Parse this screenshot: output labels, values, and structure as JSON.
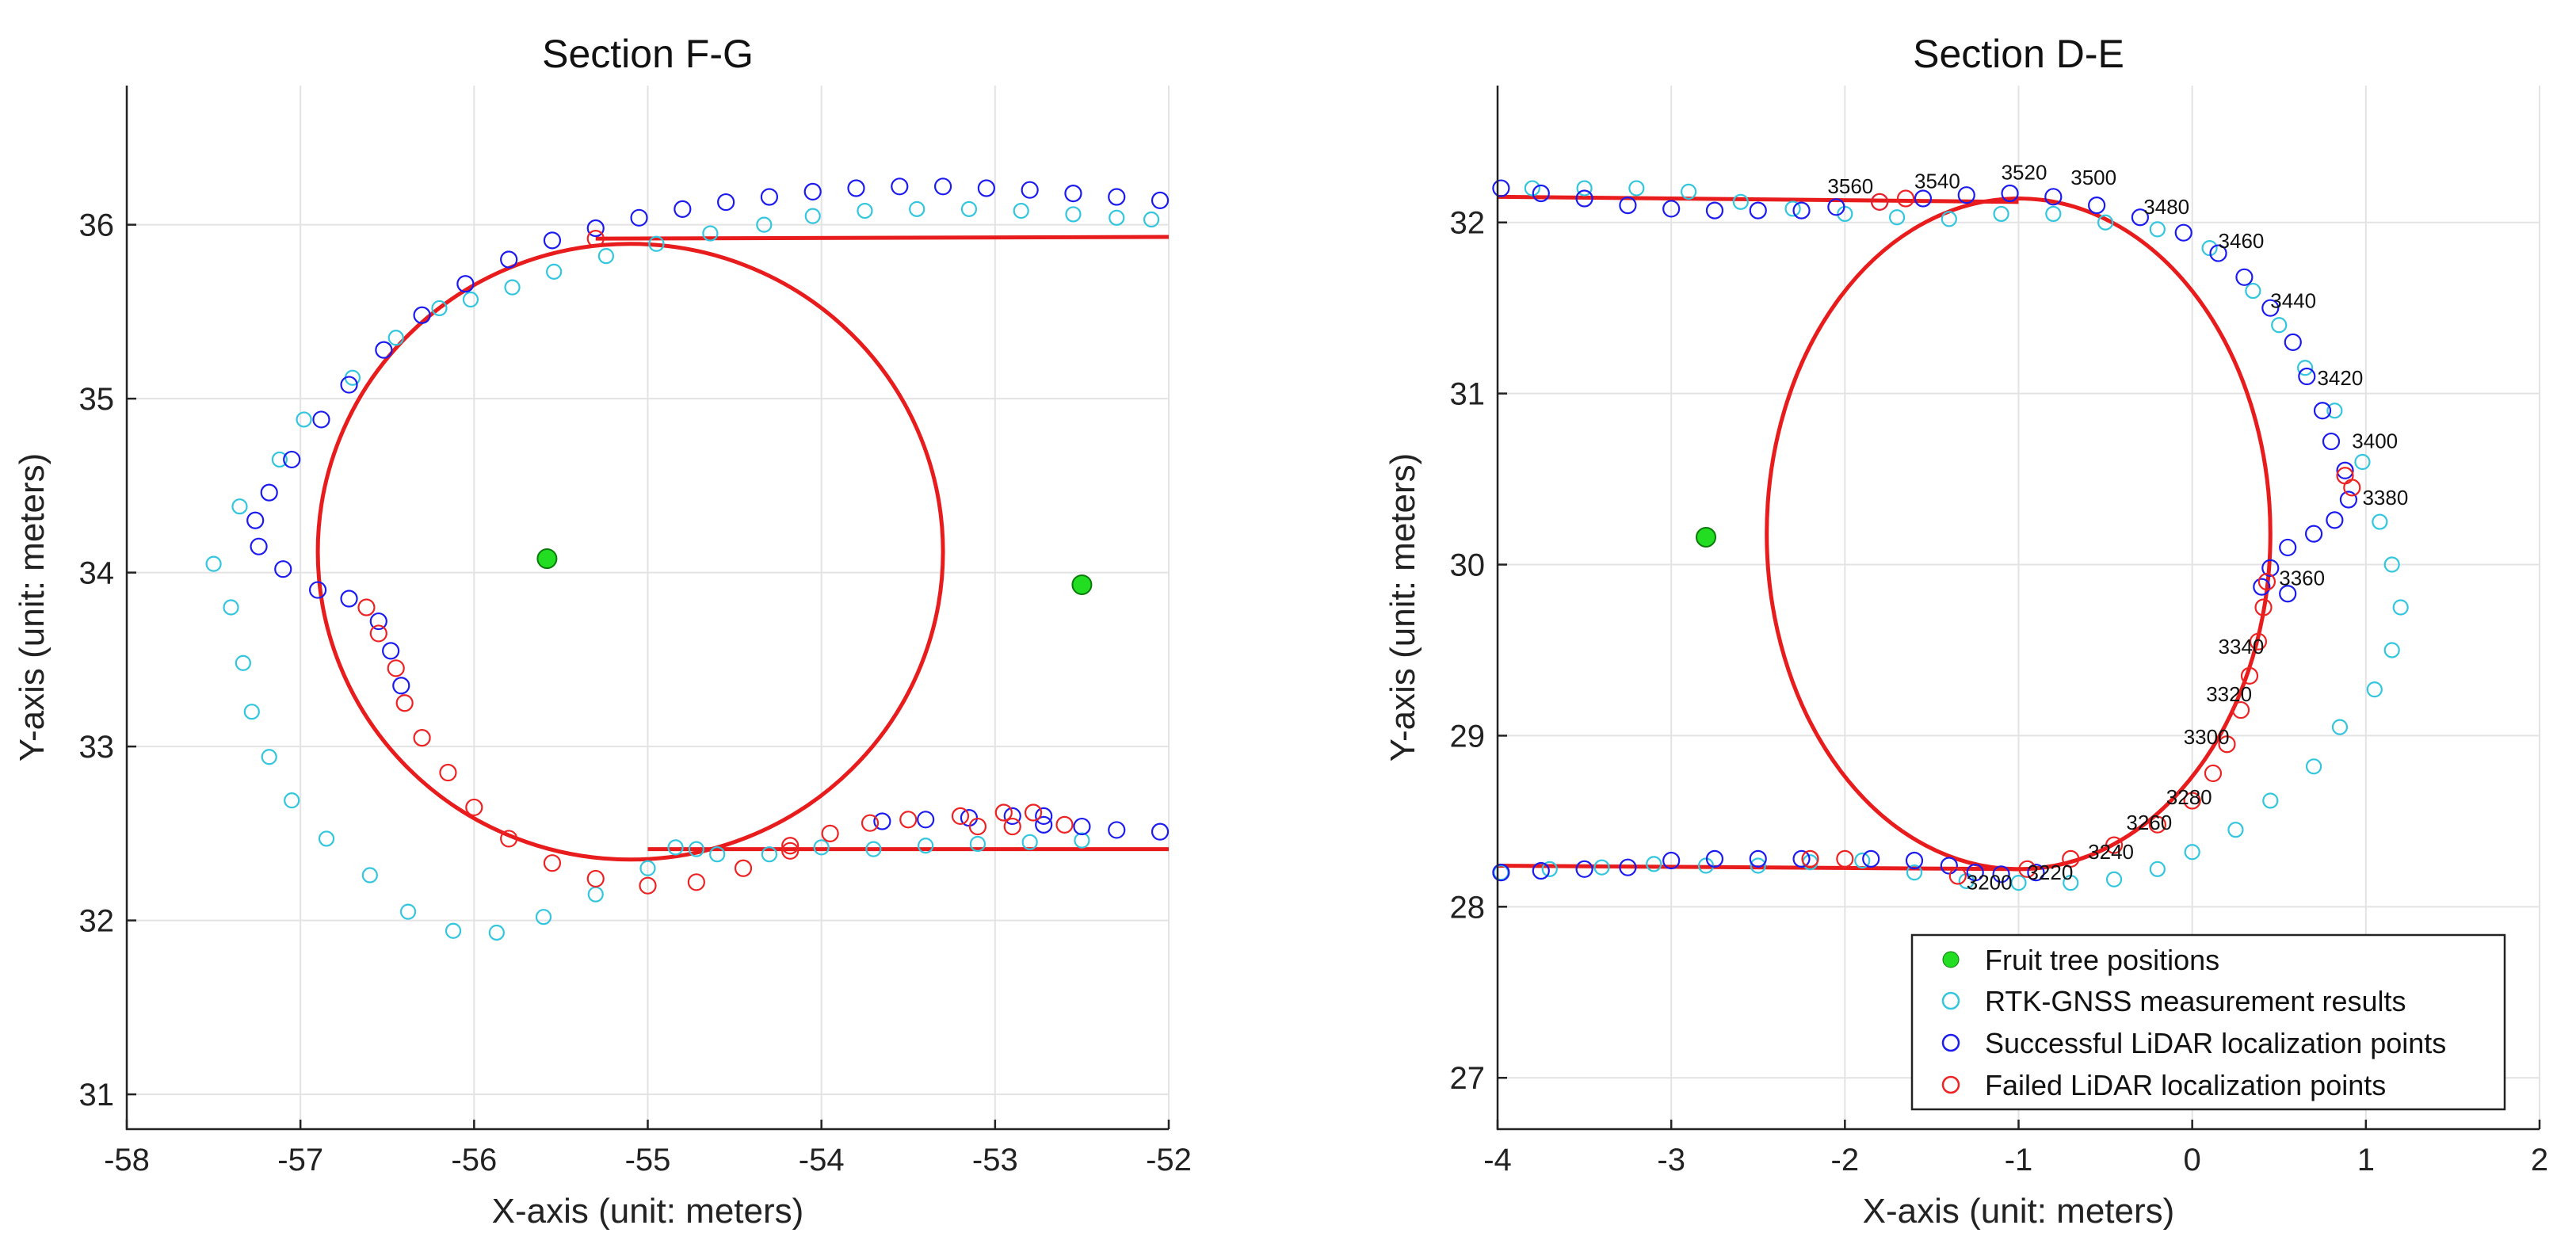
{
  "colors": {
    "tree_fill": "#22dd22",
    "tree_edge": "#0a7a0a",
    "rtk": "#33c6de",
    "success": "#1b1bf0",
    "failed": "#ee2222",
    "path": "#e81c1c"
  },
  "legend": {
    "entries": [
      "Fruit tree positions",
      "RTK-GNSS measurement results",
      "Successful LiDAR localization points",
      "Failed LiDAR localization points"
    ]
  },
  "chart_data": [
    {
      "type": "scatter",
      "title": "Section F-G",
      "xlabel": "X-axis (unit: meters)",
      "ylabel": "Y-axis (unit: meters)",
      "xlim": [
        -58,
        -52
      ],
      "ylim": [
        30.8,
        36.8
      ],
      "xticks": [
        -58,
        -57,
        -56,
        -55,
        -54,
        -53,
        -52
      ],
      "yticks": [
        31,
        32,
        33,
        34,
        35,
        36
      ],
      "grid": true,
      "trees": [
        [
          -55.58,
          34.08
        ],
        [
          -52.5,
          33.93
        ]
      ],
      "rtk": [
        [
          -57.5,
          34.05
        ],
        [
          -57.4,
          33.8
        ],
        [
          -57.33,
          33.48
        ],
        [
          -57.28,
          33.2
        ],
        [
          -57.18,
          32.94
        ],
        [
          -57.05,
          32.69
        ],
        [
          -56.85,
          32.47
        ],
        [
          -56.6,
          32.26
        ],
        [
          -56.38,
          32.05
        ],
        [
          -56.12,
          31.94
        ],
        [
          -55.87,
          31.93
        ],
        [
          -55.6,
          32.02
        ],
        [
          -55.3,
          32.15
        ],
        [
          -55.0,
          32.3
        ],
        [
          -54.84,
          32.42
        ],
        [
          -54.72,
          32.41
        ],
        [
          -54.6,
          32.38
        ],
        [
          -54.3,
          32.38
        ],
        [
          -54.0,
          32.42
        ],
        [
          -53.7,
          32.41
        ],
        [
          -53.4,
          32.43
        ],
        [
          -53.1,
          32.44
        ],
        [
          -52.8,
          32.45
        ],
        [
          -52.5,
          32.46
        ],
        [
          -57.35,
          34.38
        ],
        [
          -57.12,
          34.65
        ],
        [
          -56.98,
          34.88
        ],
        [
          -56.7,
          35.12
        ],
        [
          -56.45,
          35.35
        ],
        [
          -56.2,
          35.52
        ],
        [
          -56.02,
          35.57
        ],
        [
          -55.78,
          35.64
        ],
        [
          -55.54,
          35.73
        ],
        [
          -55.24,
          35.82
        ],
        [
          -54.95,
          35.89
        ],
        [
          -54.64,
          35.95
        ],
        [
          -54.33,
          36.0
        ],
        [
          -54.05,
          36.05
        ],
        [
          -53.75,
          36.08
        ],
        [
          -53.45,
          36.09
        ],
        [
          -53.15,
          36.09
        ],
        [
          -52.85,
          36.08
        ],
        [
          -52.55,
          36.06
        ],
        [
          -52.3,
          36.04
        ],
        [
          -52.1,
          36.03
        ]
      ],
      "success": [
        [
          -52.05,
          36.14
        ],
        [
          -52.3,
          36.16
        ],
        [
          -52.55,
          36.18
        ],
        [
          -52.8,
          36.2
        ],
        [
          -53.05,
          36.21
        ],
        [
          -53.3,
          36.22
        ],
        [
          -53.55,
          36.22
        ],
        [
          -53.8,
          36.21
        ],
        [
          -54.05,
          36.19
        ],
        [
          -54.3,
          36.16
        ],
        [
          -54.55,
          36.13
        ],
        [
          -54.8,
          36.09
        ],
        [
          -55.05,
          36.04
        ],
        [
          -55.3,
          35.98
        ],
        [
          -55.55,
          35.91
        ],
        [
          -55.8,
          35.8
        ],
        [
          -56.05,
          35.66
        ],
        [
          -56.3,
          35.48
        ],
        [
          -56.52,
          35.28
        ],
        [
          -56.72,
          35.08
        ],
        [
          -56.88,
          34.88
        ],
        [
          -57.05,
          34.65
        ],
        [
          -57.18,
          34.46
        ],
        [
          -57.26,
          34.3
        ],
        [
          -57.24,
          34.15
        ],
        [
          -57.1,
          34.02
        ],
        [
          -56.9,
          33.9
        ],
        [
          -56.72,
          33.85
        ],
        [
          -56.55,
          33.72
        ],
        [
          -56.48,
          33.55
        ],
        [
          -56.42,
          33.35
        ],
        [
          -53.65,
          32.57
        ],
        [
          -53.4,
          32.58
        ],
        [
          -53.15,
          32.59
        ],
        [
          -52.9,
          32.6
        ],
        [
          -52.72,
          32.6
        ],
        [
          -52.72,
          32.55
        ],
        [
          -52.5,
          32.54
        ],
        [
          -52.3,
          32.52
        ],
        [
          -52.05,
          32.51
        ]
      ],
      "failed": [
        [
          -56.62,
          33.8
        ],
        [
          -56.55,
          33.65
        ],
        [
          -56.45,
          33.45
        ],
        [
          -56.4,
          33.25
        ],
        [
          -56.3,
          33.05
        ],
        [
          -56.15,
          32.85
        ],
        [
          -56.0,
          32.65
        ],
        [
          -55.8,
          32.47
        ],
        [
          -55.55,
          32.33
        ],
        [
          -55.3,
          32.24
        ],
        [
          -55.0,
          32.2
        ],
        [
          -54.72,
          32.22
        ],
        [
          -54.45,
          32.3
        ],
        [
          -54.18,
          32.4
        ],
        [
          -53.95,
          32.5
        ],
        [
          -53.72,
          32.56
        ],
        [
          -53.5,
          32.58
        ],
        [
          -53.2,
          32.6
        ],
        [
          -52.95,
          32.62
        ],
        [
          -52.78,
          32.62
        ],
        [
          -52.9,
          32.54
        ],
        [
          -53.1,
          32.54
        ],
        [
          -52.6,
          32.55
        ],
        [
          -55.3,
          35.92
        ],
        [
          -54.18,
          32.43
        ]
      ],
      "path": {
        "top_line": [
          [
            -55.3,
            35.92
          ],
          [
            -52.0,
            35.93
          ]
        ],
        "bottom_line": [
          [
            -55.0,
            32.41
          ],
          [
            -52.0,
            32.41
          ]
        ],
        "turn_center": [
          -55.1,
          34.12
        ],
        "turn_radii": [
          1.8,
          1.77
        ]
      },
      "annotations": []
    },
    {
      "type": "scatter",
      "title": "Section D-E",
      "xlabel": "X-axis (unit: meters)",
      "ylabel": "Y-axis (unit: meters)",
      "xlim": [
        -4,
        2
      ],
      "ylim": [
        26.7,
        32.8
      ],
      "xticks": [
        -4,
        -3,
        -2,
        -1,
        0,
        1,
        2
      ],
      "yticks": [
        27,
        28,
        29,
        30,
        31,
        32
      ],
      "grid": true,
      "trees": [
        [
          -2.8,
          30.16
        ]
      ],
      "rtk": [
        [
          -3.8,
          32.2
        ],
        [
          -3.5,
          32.2
        ],
        [
          -3.2,
          32.2
        ],
        [
          -2.9,
          32.18
        ],
        [
          -2.6,
          32.12
        ],
        [
          -2.3,
          32.08
        ],
        [
          -2.0,
          32.05
        ],
        [
          -1.7,
          32.03
        ],
        [
          -1.4,
          32.02
        ],
        [
          -1.1,
          32.05
        ],
        [
          -0.8,
          32.05
        ],
        [
          -0.5,
          32.0
        ],
        [
          -0.2,
          31.96
        ],
        [
          0.1,
          31.85
        ],
        [
          0.35,
          31.6
        ],
        [
          0.5,
          31.4
        ],
        [
          0.65,
          31.15
        ],
        [
          0.82,
          30.9
        ],
        [
          0.98,
          30.6
        ],
        [
          1.08,
          30.25
        ],
        [
          1.15,
          30.0
        ],
        [
          1.2,
          29.75
        ],
        [
          1.15,
          29.5
        ],
        [
          1.05,
          29.27
        ],
        [
          0.85,
          29.05
        ],
        [
          0.7,
          28.82
        ],
        [
          0.45,
          28.62
        ],
        [
          0.25,
          28.45
        ],
        [
          0.0,
          28.32
        ],
        [
          -0.2,
          28.22
        ],
        [
          -0.45,
          28.16
        ],
        [
          -0.7,
          28.14
        ],
        [
          -1.0,
          28.14
        ],
        [
          -1.3,
          28.15
        ],
        [
          -1.6,
          28.2
        ],
        [
          -1.9,
          28.27
        ],
        [
          -2.2,
          28.26
        ],
        [
          -2.5,
          28.24
        ],
        [
          -2.8,
          28.24
        ],
        [
          -3.1,
          28.25
        ],
        [
          -3.4,
          28.23
        ],
        [
          -3.7,
          28.22
        ],
        [
          -3.98,
          28.2
        ]
      ],
      "success": [
        [
          -3.98,
          32.2
        ],
        [
          -3.75,
          32.17
        ],
        [
          -3.5,
          32.14
        ],
        [
          -3.25,
          32.1
        ],
        [
          -3.0,
          32.08
        ],
        [
          -2.75,
          32.07
        ],
        [
          -2.5,
          32.07
        ],
        [
          -2.25,
          32.07
        ],
        [
          -2.05,
          32.09
        ],
        [
          -1.8,
          32.12
        ],
        [
          -1.55,
          32.14
        ],
        [
          -1.3,
          32.16
        ],
        [
          -1.05,
          32.17
        ],
        [
          -0.8,
          32.15
        ],
        [
          -0.55,
          32.1
        ],
        [
          -0.3,
          32.03
        ],
        [
          -0.05,
          31.94
        ],
        [
          0.15,
          31.82
        ],
        [
          0.3,
          31.68
        ],
        [
          0.45,
          31.5
        ],
        [
          0.58,
          31.3
        ],
        [
          0.66,
          31.1
        ],
        [
          0.75,
          30.9
        ],
        [
          0.8,
          30.72
        ],
        [
          0.88,
          30.55
        ],
        [
          0.9,
          30.38
        ],
        [
          0.82,
          30.26
        ],
        [
          0.7,
          30.18
        ],
        [
          0.55,
          30.1
        ],
        [
          0.45,
          29.98
        ],
        [
          0.4,
          29.87
        ],
        [
          0.55,
          29.83
        ],
        [
          -3.98,
          28.2
        ],
        [
          -3.75,
          28.21
        ],
        [
          -3.5,
          28.22
        ],
        [
          -3.25,
          28.23
        ],
        [
          -3.0,
          28.27
        ],
        [
          -2.75,
          28.28
        ],
        [
          -2.5,
          28.28
        ],
        [
          -2.25,
          28.28
        ],
        [
          -1.85,
          28.28
        ],
        [
          -1.6,
          28.27
        ],
        [
          -1.4,
          28.24
        ],
        [
          -1.25,
          28.2
        ],
        [
          -1.1,
          28.19
        ],
        [
          -0.9,
          28.2
        ]
      ],
      "failed": [
        [
          -2.2,
          28.28
        ],
        [
          -2.0,
          28.28
        ],
        [
          -1.35,
          28.18
        ],
        [
          -0.95,
          28.22
        ],
        [
          -0.7,
          28.28
        ],
        [
          -0.45,
          28.36
        ],
        [
          -0.2,
          28.48
        ],
        [
          0.0,
          28.62
        ],
        [
          0.12,
          28.78
        ],
        [
          0.2,
          28.95
        ],
        [
          0.28,
          29.15
        ],
        [
          0.33,
          29.35
        ],
        [
          0.38,
          29.55
        ],
        [
          0.41,
          29.75
        ],
        [
          0.43,
          29.9
        ],
        [
          0.88,
          30.52
        ],
        [
          0.92,
          30.45
        ],
        [
          -1.65,
          32.14
        ],
        [
          -1.8,
          32.12
        ]
      ],
      "path": {
        "top_line": [
          [
            -4.0,
            32.15
          ],
          [
            -1.0,
            32.12
          ]
        ],
        "bottom_line": [
          [
            -4.0,
            28.24
          ],
          [
            -1.0,
            28.22
          ]
        ],
        "turn_center": [
          -1.0,
          30.18
        ],
        "turn_radii": [
          1.45,
          1.96
        ]
      },
      "annotations": [
        {
          "text": "3200",
          "x": -1.3,
          "y": 28.1
        },
        {
          "text": "3220",
          "x": -0.95,
          "y": 28.16
        },
        {
          "text": "3240",
          "x": -0.6,
          "y": 28.28
        },
        {
          "text": "3260",
          "x": -0.38,
          "y": 28.45
        },
        {
          "text": "3280",
          "x": -0.15,
          "y": 28.6
        },
        {
          "text": "3300",
          "x": -0.05,
          "y": 28.95
        },
        {
          "text": "3320",
          "x": 0.08,
          "y": 29.2
        },
        {
          "text": "3340",
          "x": 0.15,
          "y": 29.48
        },
        {
          "text": "3360",
          "x": 0.5,
          "y": 29.88
        },
        {
          "text": "3380",
          "x": 0.98,
          "y": 30.35
        },
        {
          "text": "3400",
          "x": 0.92,
          "y": 30.68
        },
        {
          "text": "3420",
          "x": 0.72,
          "y": 31.05
        },
        {
          "text": "3440",
          "x": 0.45,
          "y": 31.5
        },
        {
          "text": "3460",
          "x": 0.15,
          "y": 31.85
        },
        {
          "text": "3480",
          "x": -0.28,
          "y": 32.05
        },
        {
          "text": "3500",
          "x": -0.7,
          "y": 32.22
        },
        {
          "text": "3520",
          "x": -1.1,
          "y": 32.25
        },
        {
          "text": "3540",
          "x": -1.6,
          "y": 32.2
        },
        {
          "text": "3560",
          "x": -2.1,
          "y": 32.17
        }
      ]
    }
  ]
}
